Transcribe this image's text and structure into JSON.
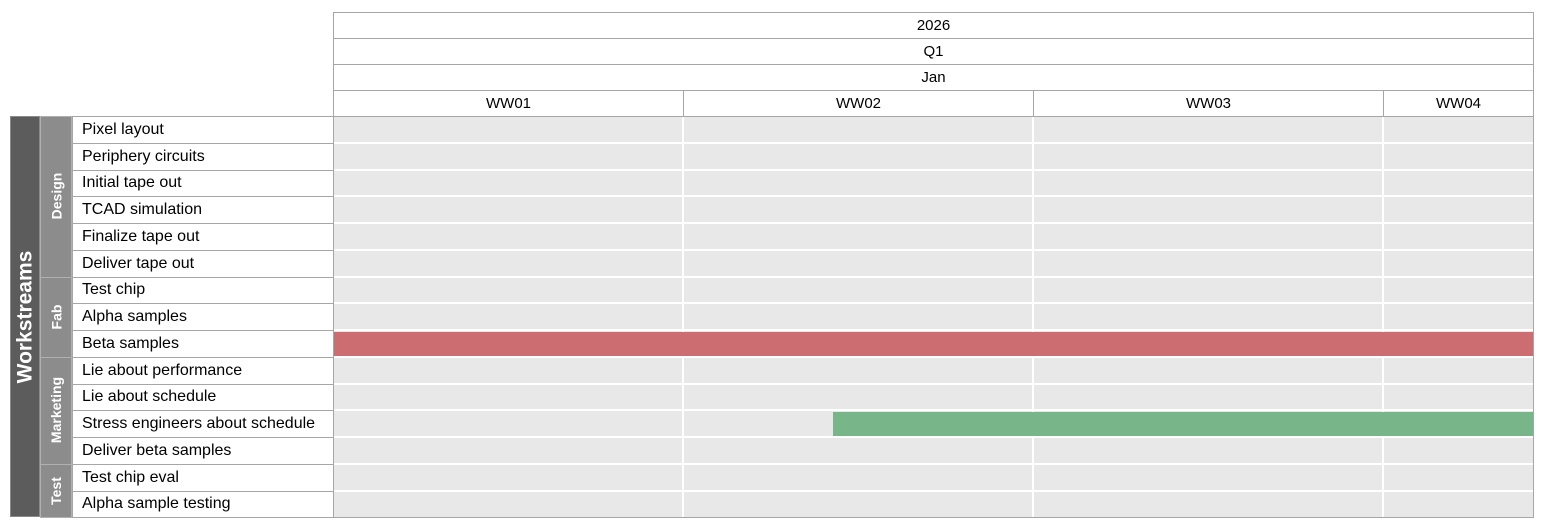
{
  "chart_data": {
    "type": "gantt",
    "header": {
      "year": "2026",
      "quarter": "Q1",
      "month": "Jan",
      "weeks": [
        "WW01",
        "WW02",
        "WW03",
        "WW04"
      ]
    },
    "axis_label": "Workstreams",
    "groups": [
      {
        "name": "Design",
        "tasks": [
          "Pixel layout",
          "Periphery circuits",
          "Initial tape out",
          "TCAD simulation",
          "Finalize tape out",
          "Deliver tape out"
        ]
      },
      {
        "name": "Fab",
        "tasks": [
          "Test chip",
          "Alpha samples",
          "Beta samples"
        ]
      },
      {
        "name": "Marketing",
        "tasks": [
          "Lie about performance",
          "Lie about schedule",
          "Stress engineers about schedule",
          "Deliver beta samples"
        ]
      },
      {
        "name": "Test",
        "tasks": [
          "Test chip eval",
          "Alpha sample testing"
        ]
      }
    ],
    "week_day_spans": [
      7,
      7,
      7,
      3
    ],
    "bars": [
      {
        "task": "Beta samples",
        "start_day": 0,
        "end_day": 24,
        "color": "#cc6d72"
      },
      {
        "task": "Stress engineers about schedule",
        "start_day": 10,
        "end_day": 24,
        "color": "#78b689"
      }
    ],
    "colors": {
      "grid_fill": "#e8e8e8",
      "workstream_band": "#5c5c5c",
      "group_band": "#8c8c8c"
    }
  }
}
